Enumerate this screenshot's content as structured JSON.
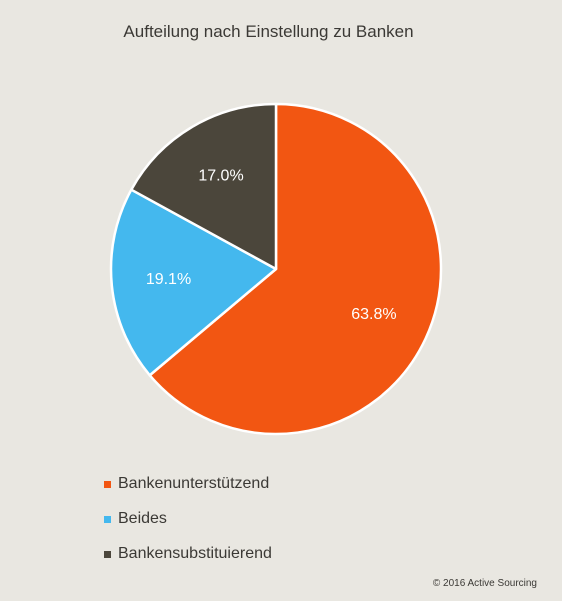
{
  "chart_data": {
    "type": "pie",
    "title": "Aufteilung nach Einstellung zu Banken",
    "slices": [
      {
        "label": "Bankenunterstützend",
        "value": 63.8,
        "display": "63.8%",
        "color": "#f25612"
      },
      {
        "label": "Beides",
        "value": 19.1,
        "display": "19.1%",
        "color": "#44b8ee"
      },
      {
        "label": "Bankensubstituierend",
        "value": 17.0,
        "display": "17.0%",
        "color": "#4b463b"
      }
    ],
    "legend_placement": "bottom-left"
  },
  "footer": {
    "copyright": "© 2016 Active Sourcing"
  }
}
